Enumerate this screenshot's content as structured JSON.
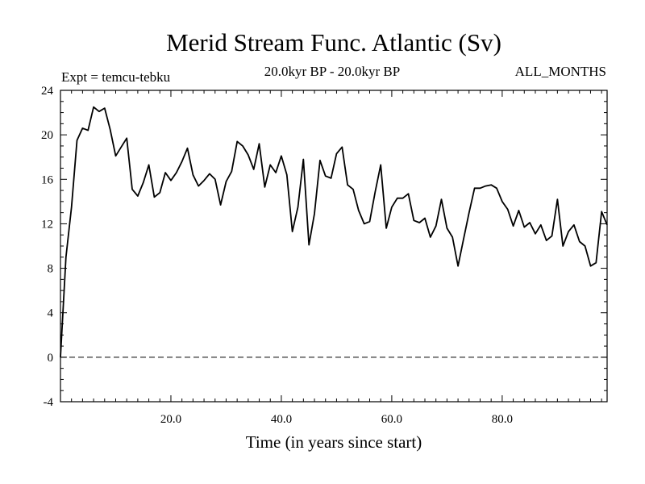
{
  "chart_data": {
    "type": "line",
    "title": "Merid Stream Func. Atlantic (Sv)",
    "subtitle_left": "Expt = temcu-tebku",
    "subtitle_center": "20.0kyr BP - 20.0kyr BP",
    "subtitle_right": "ALL_MONTHS",
    "xlabel": "Time (in years since start)",
    "ylabel": "",
    "xlim": [
      0,
      99
    ],
    "ylim": [
      -4,
      24
    ],
    "xticks": [
      20,
      40,
      60,
      80
    ],
    "xtick_labels": [
      "20.0",
      "40.0",
      "60.0",
      "80.0"
    ],
    "yticks": [
      -4,
      0,
      4,
      8,
      12,
      16,
      20,
      24
    ],
    "ytick_labels": [
      "-4",
      "0",
      "4",
      "8",
      "12",
      "16",
      "20",
      "24"
    ],
    "reference_line": {
      "y": 0,
      "style": "dashed"
    },
    "series": [
      {
        "name": "Merid Stream Func. Atlantic",
        "x": [
          0,
          1,
          2,
          3,
          4,
          5,
          6,
          7,
          8,
          9,
          10,
          11,
          12,
          13,
          14,
          15,
          16,
          17,
          18,
          19,
          20,
          21,
          22,
          23,
          24,
          25,
          26,
          27,
          28,
          29,
          30,
          31,
          32,
          33,
          34,
          35,
          36,
          37,
          38,
          39,
          40,
          41,
          42,
          43,
          44,
          45,
          46,
          47,
          48,
          49,
          50,
          51,
          52,
          53,
          54,
          55,
          56,
          57,
          58,
          59,
          60,
          61,
          62,
          63,
          64,
          65,
          66,
          67,
          68,
          69,
          70,
          71,
          72,
          73,
          74,
          75,
          76,
          77,
          78,
          79,
          80,
          81,
          82,
          83,
          84,
          85,
          86,
          87,
          88,
          89,
          90,
          91,
          92,
          93,
          94,
          95,
          96,
          97,
          98,
          99
        ],
        "values": [
          0.0,
          9.0,
          13.5,
          19.5,
          20.6,
          20.4,
          22.5,
          22.1,
          22.4,
          20.5,
          18.1,
          18.9,
          19.7,
          15.1,
          14.5,
          15.7,
          17.3,
          14.4,
          14.8,
          16.6,
          15.9,
          16.6,
          17.6,
          18.8,
          16.4,
          15.4,
          15.9,
          16.5,
          16.0,
          13.7,
          15.8,
          16.7,
          19.4,
          19.0,
          18.2,
          16.9,
          19.2,
          15.3,
          17.3,
          16.6,
          18.1,
          16.4,
          11.3,
          13.5,
          17.8,
          10.1,
          12.9,
          17.7,
          16.3,
          16.1,
          18.3,
          18.9,
          15.5,
          15.1,
          13.2,
          12.0,
          12.2,
          14.9,
          17.3,
          11.6,
          13.5,
          14.3,
          14.3,
          14.7,
          12.3,
          12.1,
          12.5,
          10.8,
          11.8,
          14.2,
          11.6,
          10.8,
          8.2,
          10.6,
          13.0,
          15.2,
          15.2,
          15.4,
          15.5,
          15.2,
          14.0,
          13.3,
          11.8,
          13.2,
          11.7,
          12.1,
          11.1,
          11.9,
          10.5,
          10.9,
          14.2,
          10.0,
          11.3,
          11.9,
          10.4,
          10.0,
          8.2,
          8.5,
          13.1,
          11.9
        ]
      }
    ]
  }
}
